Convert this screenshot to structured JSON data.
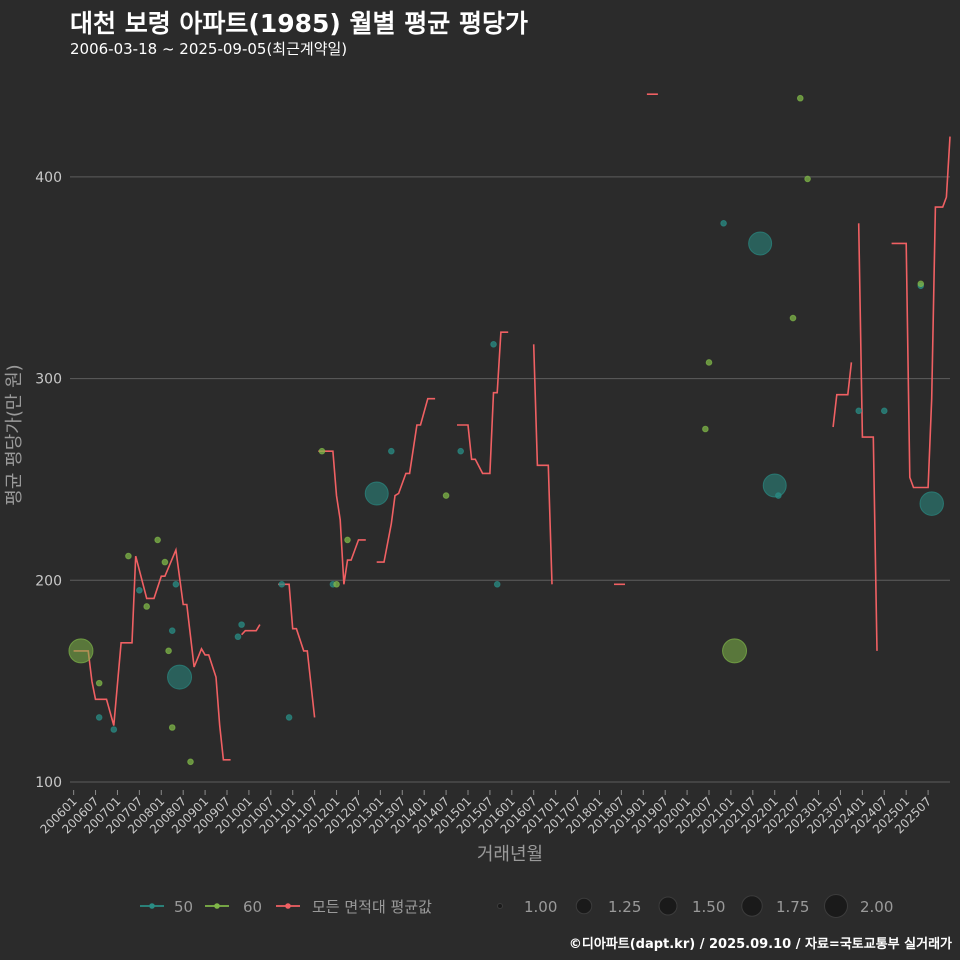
{
  "title": "대천 보령 아파트(1985) 월별 평균 평당가",
  "subtitle": "2006-03-18 ~ 2025-09-05(최근계약일)",
  "caption": "©디아파트(dapt.kr) / 2025.09.10 / 자료=국토교통부 실거래가",
  "colors": {
    "background": "#2b2b2b",
    "grid": "#5e5e5e",
    "series50": "#2a8c84",
    "series60": "#7fb648",
    "avg": "#f06063",
    "text": "#c8c8c8"
  },
  "chart_data": {
    "type": "line",
    "xlabel": "거래년월",
    "ylabel": "평균 평당가(만 원)",
    "ylim": [
      97,
      453
    ],
    "yticks": [
      100,
      200,
      300,
      400
    ],
    "xlim": [
      2005.917,
      2026.0
    ],
    "xticks": [
      "200601",
      "200607",
      "200701",
      "200707",
      "200801",
      "200807",
      "200901",
      "200907",
      "201001",
      "201007",
      "201101",
      "201107",
      "201201",
      "201207",
      "201301",
      "201307",
      "201401",
      "201407",
      "201501",
      "201507",
      "201601",
      "201607",
      "201701",
      "201707",
      "201801",
      "201807",
      "201901",
      "201907",
      "202001",
      "202007",
      "202101",
      "202107",
      "202201",
      "202207",
      "202301",
      "202307",
      "202401",
      "202407",
      "202501",
      "202507"
    ],
    "series": [
      {
        "name": "50",
        "color": "#2a8c84",
        "points": [
          {
            "x": 2006.583,
            "y": 132,
            "size": 1
          },
          {
            "x": 2006.917,
            "y": 126,
            "size": 1
          },
          {
            "x": 2007.5,
            "y": 195,
            "size": 1
          },
          {
            "x": 2008.25,
            "y": 175,
            "size": 1
          },
          {
            "x": 2008.333,
            "y": 198,
            "size": 1
          },
          {
            "x": 2008.417,
            "y": 152,
            "size": 1.8
          },
          {
            "x": 2009.75,
            "y": 172,
            "size": 1
          },
          {
            "x": 2009.833,
            "y": 178,
            "size": 1
          },
          {
            "x": 2010.75,
            "y": 198,
            "size": 1
          },
          {
            "x": 2010.917,
            "y": 132,
            "size": 1
          },
          {
            "x": 2011.917,
            "y": 198,
            "size": 1
          },
          {
            "x": 2012.917,
            "y": 243,
            "size": 1.7
          },
          {
            "x": 2013.25,
            "y": 264,
            "size": 1
          },
          {
            "x": 2014.833,
            "y": 264,
            "size": 1
          },
          {
            "x": 2015.583,
            "y": 317,
            "size": 1
          },
          {
            "x": 2015.667,
            "y": 198,
            "size": 1
          },
          {
            "x": 2020.833,
            "y": 377,
            "size": 1
          },
          {
            "x": 2021.667,
            "y": 367,
            "size": 1.7
          },
          {
            "x": 2022.0,
            "y": 247,
            "size": 1.7
          },
          {
            "x": 2022.083,
            "y": 242,
            "size": 1
          },
          {
            "x": 2023.917,
            "y": 284,
            "size": 1
          },
          {
            "x": 2024.5,
            "y": 284,
            "size": 1
          },
          {
            "x": 2025.333,
            "y": 346,
            "size": 1
          },
          {
            "x": 2025.583,
            "y": 238,
            "size": 1.75
          }
        ]
      },
      {
        "name": "60",
        "color": "#7fb648",
        "points": [
          {
            "x": 2006.167,
            "y": 165,
            "size": 1.8
          },
          {
            "x": 2006.583,
            "y": 149,
            "size": 1
          },
          {
            "x": 2007.25,
            "y": 212,
            "size": 1
          },
          {
            "x": 2007.667,
            "y": 187,
            "size": 1
          },
          {
            "x": 2007.917,
            "y": 220,
            "size": 1
          },
          {
            "x": 2008.083,
            "y": 209,
            "size": 1
          },
          {
            "x": 2008.167,
            "y": 165,
            "size": 1
          },
          {
            "x": 2008.25,
            "y": 127,
            "size": 1
          },
          {
            "x": 2008.667,
            "y": 110,
            "size": 1
          },
          {
            "x": 2011.667,
            "y": 264,
            "size": 1
          },
          {
            "x": 2012.0,
            "y": 198,
            "size": 1
          },
          {
            "x": 2012.25,
            "y": 220,
            "size": 1
          },
          {
            "x": 2014.5,
            "y": 242,
            "size": 1
          },
          {
            "x": 2020.417,
            "y": 275,
            "size": 1
          },
          {
            "x": 2020.5,
            "y": 308,
            "size": 1
          },
          {
            "x": 2021.083,
            "y": 165,
            "size": 1.8
          },
          {
            "x": 2022.417,
            "y": 330,
            "size": 1
          },
          {
            "x": 2022.583,
            "y": 439,
            "size": 1
          },
          {
            "x": 2022.75,
            "y": 399,
            "size": 1
          },
          {
            "x": 2025.333,
            "y": 347,
            "size": 1
          }
        ]
      },
      {
        "name": "모든 면적대 평균값",
        "color": "#f06063",
        "segments": [
          [
            [
              2006.0,
              165
            ],
            [
              2006.333,
              165
            ],
            [
              2006.417,
              150
            ],
            [
              2006.5,
              141
            ],
            [
              2006.75,
              141
            ],
            [
              2006.917,
              128
            ],
            [
              2007.083,
              169
            ],
            [
              2007.333,
              169
            ],
            [
              2007.417,
              212
            ],
            [
              2007.667,
              191
            ],
            [
              2007.833,
              191
            ],
            [
              2008.0,
              202
            ],
            [
              2008.083,
              202
            ],
            [
              2008.333,
              215
            ],
            [
              2008.5,
              188
            ],
            [
              2008.583,
              188
            ],
            [
              2008.75,
              157
            ],
            [
              2008.917,
              166
            ],
            [
              2009.0,
              163
            ],
            [
              2009.083,
              163
            ],
            [
              2009.25,
              152
            ],
            [
              2009.333,
              128
            ],
            [
              2009.417,
              111
            ],
            [
              2009.583,
              111
            ]
          ],
          [
            [
              2009.833,
              173
            ],
            [
              2009.917,
              175
            ],
            [
              2010.167,
              175
            ],
            [
              2010.25,
              178
            ]
          ],
          [
            [
              2010.667,
              198
            ],
            [
              2010.917,
              198
            ],
            [
              2011.0,
              176
            ],
            [
              2011.083,
              176
            ],
            [
              2011.25,
              165
            ],
            [
              2011.333,
              165
            ],
            [
              2011.5,
              132
            ]
          ],
          [
            [
              2011.583,
              264
            ],
            [
              2011.917,
              264
            ],
            [
              2012.0,
              242
            ],
            [
              2012.083,
              230
            ],
            [
              2012.167,
              198
            ],
            [
              2012.25,
              210
            ],
            [
              2012.333,
              210
            ],
            [
              2012.5,
              220
            ],
            [
              2012.667,
              220
            ]
          ],
          [
            [
              2012.917,
              209
            ],
            [
              2013.083,
              209
            ],
            [
              2013.25,
              228
            ],
            [
              2013.333,
              242
            ],
            [
              2013.417,
              243
            ],
            [
              2013.583,
              253
            ],
            [
              2013.667,
              253
            ],
            [
              2013.833,
              277
            ],
            [
              2013.917,
              277
            ],
            [
              2014.083,
              290
            ],
            [
              2014.25,
              290
            ]
          ],
          [
            [
              2014.75,
              277
            ],
            [
              2015.0,
              277
            ],
            [
              2015.083,
              260
            ],
            [
              2015.167,
              260
            ],
            [
              2015.333,
              253
            ],
            [
              2015.5,
              253
            ],
            [
              2015.583,
              293
            ],
            [
              2015.667,
              293
            ],
            [
              2015.75,
              323
            ],
            [
              2015.917,
              323
            ]
          ],
          [
            [
              2016.5,
              317
            ],
            [
              2016.583,
              257
            ],
            [
              2016.833,
              257
            ],
            [
              2016.917,
              198
            ]
          ],
          [
            [
              2018.333,
              198
            ],
            [
              2018.583,
              198
            ]
          ],
          [
            [
              2019.083,
              441
            ],
            [
              2019.333,
              441
            ]
          ],
          [
            [
              2023.333,
              276
            ],
            [
              2023.417,
              292
            ],
            [
              2023.667,
              292
            ],
            [
              2023.75,
              308
            ]
          ],
          [
            [
              2023.917,
              377
            ],
            [
              2024.0,
              271
            ],
            [
              2024.25,
              271
            ],
            [
              2024.333,
              165
            ]
          ],
          [
            [
              2024.667,
              367
            ],
            [
              2025.0,
              367
            ],
            [
              2025.083,
              251
            ],
            [
              2025.167,
              246
            ],
            [
              2025.5,
              246
            ],
            [
              2025.583,
              290
            ],
            [
              2025.667,
              385
            ],
            [
              2025.833,
              385
            ],
            [
              2025.917,
              390
            ],
            [
              2026.0,
              420
            ]
          ]
        ]
      }
    ],
    "size_legend": [
      1.0,
      1.25,
      1.5,
      1.75,
      2.0
    ],
    "size_legend_labels": [
      "1.00",
      "1.25",
      "1.50",
      "1.75",
      "2.00"
    ]
  }
}
